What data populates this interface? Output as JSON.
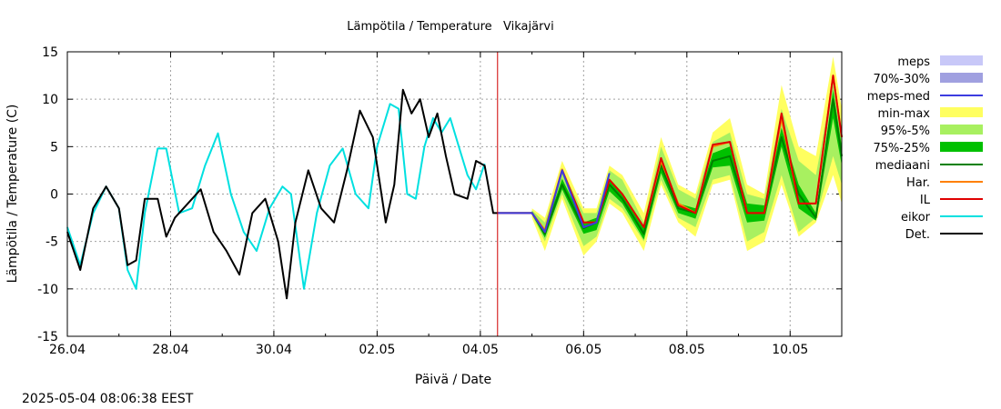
{
  "chart_data": {
    "type": "line",
    "title": "Lämpötila / Temperature   Vikajärvi",
    "xlabel": "Päivä / Date",
    "ylabel": "Lämpötila / Temperature (C)",
    "ylim": [
      -15,
      15
    ],
    "yticks": [
      "-15",
      "-10",
      "-5",
      "0",
      "5",
      "10",
      "15"
    ],
    "xlim_days": [
      "2025-04-26T00:00",
      "2025-05-11T00:00"
    ],
    "xticks": [
      "26.04",
      "28.04",
      "30.04",
      "02.05",
      "04.05",
      "06.05",
      "08.05",
      "10.05"
    ],
    "grid": true,
    "legend_position": "right",
    "now_marker": "2025-05-04T08:00",
    "timestamp": "2025-05-04 08:06:38 EEST",
    "legend": [
      {
        "label": "meps",
        "color": "#c8c8f8",
        "style": "box"
      },
      {
        "label": "70%-30%",
        "color": "#a0a0e0",
        "style": "box"
      },
      {
        "label": "meps-med",
        "color": "#3c3ce0",
        "style": "line"
      },
      {
        "label": "min-max",
        "color": "#ffff60",
        "style": "box"
      },
      {
        "label": "95%-5%",
        "color": "#a8f060",
        "style": "box"
      },
      {
        "label": "75%-25%",
        "color": "#00c000",
        "style": "box"
      },
      {
        "label": "mediaani",
        "color": "#008000",
        "style": "line"
      },
      {
        "label": "Har.",
        "color": "#ff8000",
        "style": "line"
      },
      {
        "label": "IL",
        "color": "#e00000",
        "style": "line"
      },
      {
        "label": "eikor",
        "color": "#00e0e0",
        "style": "line"
      },
      {
        "label": "Det.",
        "color": "#000000",
        "style": "line"
      }
    ],
    "series": [
      {
        "name": "eikor",
        "color": "#00e0e0",
        "x": [
          "2025-04-26T00:00",
          "2025-04-26T06:00",
          "2025-04-26T12:00",
          "2025-04-26T18:00",
          "2025-04-27T00:00",
          "2025-04-27T04:00",
          "2025-04-27T08:00",
          "2025-04-27T12:00",
          "2025-04-27T18:00",
          "2025-04-27T22:00",
          "2025-04-28T04:00",
          "2025-04-28T10:00",
          "2025-04-28T16:00",
          "2025-04-28T22:00",
          "2025-04-29T04:00",
          "2025-04-29T10:00",
          "2025-04-29T16:00",
          "2025-04-29T22:00",
          "2025-04-30T04:00",
          "2025-04-30T08:00",
          "2025-04-30T14:00",
          "2025-04-30T20:00",
          "2025-05-01T02:00",
          "2025-05-01T08:00",
          "2025-05-01T14:00",
          "2025-05-01T20:00",
          "2025-05-02T00:00",
          "2025-05-02T06:00",
          "2025-05-02T10:00",
          "2025-05-02T14:00",
          "2025-05-02T18:00",
          "2025-05-02T22:00",
          "2025-05-03T02:00",
          "2025-05-03T06:00",
          "2025-05-03T10:00",
          "2025-05-03T14:00",
          "2025-05-03T18:00",
          "2025-05-03T22:00",
          "2025-05-04T02:00"
        ],
        "y": [
          -3.5,
          -7.5,
          -2,
          0.8,
          -1.5,
          -8,
          -10,
          -2,
          4.8,
          4.8,
          -2,
          -1.5,
          3,
          6.4,
          0,
          -4,
          -6,
          -1.5,
          0.8,
          0,
          -10,
          -2,
          3,
          4.8,
          0,
          -1.5,
          5,
          9.5,
          9,
          0,
          -0.5,
          5,
          8,
          6.5,
          8,
          5,
          2,
          0.5,
          3.2
        ]
      },
      {
        "name": "Det.",
        "color": "#000000",
        "x": [
          "2025-04-26T00:00",
          "2025-04-26T06:00",
          "2025-04-26T12:00",
          "2025-04-26T18:00",
          "2025-04-27T00:00",
          "2025-04-27T04:00",
          "2025-04-27T08:00",
          "2025-04-27T12:00",
          "2025-04-27T18:00",
          "2025-04-27T22:00",
          "2025-04-28T02:00",
          "2025-04-28T08:00",
          "2025-04-28T14:00",
          "2025-04-28T20:00",
          "2025-04-29T02:00",
          "2025-04-29T08:00",
          "2025-04-29T14:00",
          "2025-04-29T20:00",
          "2025-04-30T02:00",
          "2025-04-30T06:00",
          "2025-04-30T10:00",
          "2025-04-30T16:00",
          "2025-04-30T22:00",
          "2025-05-01T04:00",
          "2025-05-01T10:00",
          "2025-05-01T16:00",
          "2025-05-01T22:00",
          "2025-05-02T04:00",
          "2025-05-02T08:00",
          "2025-05-02T12:00",
          "2025-05-02T16:00",
          "2025-05-02T20:00",
          "2025-05-03T00:00",
          "2025-05-03T04:00",
          "2025-05-03T08:00",
          "2025-05-03T12:00",
          "2025-05-03T18:00",
          "2025-05-03T22:00",
          "2025-05-04T02:00",
          "2025-05-04T06:00",
          "2025-05-04T08:00"
        ],
        "y": [
          -4,
          -8,
          -1.5,
          0.8,
          -1.5,
          -7.5,
          -7,
          -0.5,
          -0.5,
          -4.5,
          -2.5,
          -1,
          0.5,
          -4,
          -6,
          -8.5,
          -2,
          -0.5,
          -5,
          -11,
          -3,
          2.5,
          -1.5,
          -3,
          2.5,
          8.8,
          6,
          -3,
          1,
          11,
          8.5,
          10,
          6,
          8.5,
          4,
          0,
          -0.5,
          3.5,
          3,
          -2,
          -2
        ]
      },
      {
        "name": "mediaani",
        "color": "#008000",
        "x": [
          "2025-05-04T08:00",
          "2025-05-05T00:00",
          "2025-05-05T06:00",
          "2025-05-05T14:00",
          "2025-05-06T00:00",
          "2025-05-06T06:00",
          "2025-05-06T12:00",
          "2025-05-06T18:00",
          "2025-05-07T04:00",
          "2025-05-07T12:00",
          "2025-05-07T20:00",
          "2025-05-08T04:00",
          "2025-05-08T12:00",
          "2025-05-08T20:00",
          "2025-05-09T04:00",
          "2025-05-09T12:00",
          "2025-05-09T20:00",
          "2025-05-10T04:00",
          "2025-05-10T12:00",
          "2025-05-10T20:00",
          "2025-05-11T00:00"
        ],
        "y": [
          -2,
          -2,
          -4.2,
          1,
          -3.6,
          -3,
          1,
          -0.5,
          -4.2,
          3,
          -1.5,
          -2,
          3.5,
          4,
          -2,
          -2,
          6,
          0,
          -2.5,
          10,
          4
        ]
      },
      {
        "name": "Har.",
        "color": "#ff8000",
        "x": [
          "2025-05-04T08:00",
          "2025-05-05T00:00",
          "2025-05-05T06:00",
          "2025-05-05T14:00",
          "2025-05-06T00:00",
          "2025-05-06T06:00",
          "2025-05-06T12:00",
          "2025-05-06T18:00",
          "2025-05-07T04:00",
          "2025-05-07T12:00",
          "2025-05-07T20:00",
          "2025-05-08T04:00",
          "2025-05-08T12:00",
          "2025-05-08T20:00",
          "2025-05-09T04:00",
          "2025-05-09T12:00",
          "2025-05-09T20:00",
          "2025-05-10T04:00",
          "2025-05-10T12:00",
          "2025-05-10T20:00",
          "2025-05-11T00:00"
        ],
        "y": [
          -2,
          -2,
          -3.8,
          2.6,
          -3,
          -3,
          1.5,
          0,
          -3.5,
          3.5,
          -1,
          -2,
          5,
          5.5,
          -2,
          -2,
          8,
          -1,
          -1,
          12.5,
          6
        ]
      },
      {
        "name": "IL",
        "color": "#e00000",
        "x": [
          "2025-05-04T08:00",
          "2025-05-05T00:00",
          "2025-05-05T06:00",
          "2025-05-05T14:00",
          "2025-05-06T00:00",
          "2025-05-06T06:00",
          "2025-05-06T12:00",
          "2025-05-06T18:00",
          "2025-05-07T04:00",
          "2025-05-07T12:00",
          "2025-05-07T20:00",
          "2025-05-08T04:00",
          "2025-05-08T12:00",
          "2025-05-08T20:00",
          "2025-05-09T04:00",
          "2025-05-09T12:00",
          "2025-05-09T20:00",
          "2025-05-10T04:00",
          "2025-05-10T12:00",
          "2025-05-10T20:00",
          "2025-05-11T00:00"
        ],
        "y": [
          -2,
          -2,
          -4,
          2.5,
          -3,
          -3,
          1.5,
          0,
          -3.5,
          3.8,
          -1.2,
          -2,
          5.2,
          5.5,
          -2,
          -2,
          8.5,
          -1,
          -1,
          12.5,
          6
        ]
      },
      {
        "name": "meps-med",
        "color": "#3c3ce0",
        "x": [
          "2025-05-04T08:00",
          "2025-05-05T00:00",
          "2025-05-05T06:00",
          "2025-05-05T14:00",
          "2025-05-06T00:00",
          "2025-05-06T06:00",
          "2025-05-06T12:00"
        ],
        "y": [
          -2,
          -2,
          -4,
          2.5,
          -3.5,
          -3,
          2.2
        ]
      }
    ],
    "bands": [
      {
        "name": "min-max",
        "color": "#ffff60",
        "x": [
          "2025-05-05T00:00",
          "2025-05-05T06:00",
          "2025-05-05T14:00",
          "2025-05-06T00:00",
          "2025-05-06T06:00",
          "2025-05-06T12:00",
          "2025-05-06T18:00",
          "2025-05-07T04:00",
          "2025-05-07T12:00",
          "2025-05-07T20:00",
          "2025-05-08T04:00",
          "2025-05-08T12:00",
          "2025-05-08T20:00",
          "2025-05-09T04:00",
          "2025-05-09T12:00",
          "2025-05-09T20:00",
          "2025-05-10T04:00",
          "2025-05-10T12:00",
          "2025-05-10T20:00",
          "2025-05-11T00:00"
        ],
        "lo": [
          -2.5,
          -6,
          -0.5,
          -6.5,
          -5,
          -1,
          -2,
          -6,
          1,
          -3,
          -4.5,
          1,
          1.5,
          -6,
          -5,
          1,
          -4.5,
          -3,
          2,
          -1
        ],
        "hi": [
          -1.5,
          -2.5,
          3.5,
          -1.5,
          -1.5,
          3,
          2,
          -2,
          6,
          1,
          0,
          6.5,
          8,
          1,
          0,
          11.5,
          5,
          4,
          14.5,
          9
        ]
      },
      {
        "name": "95%-5%",
        "color": "#a8f060",
        "x": [
          "2025-05-05T00:00",
          "2025-05-05T06:00",
          "2025-05-05T14:00",
          "2025-05-06T00:00",
          "2025-05-06T06:00",
          "2025-05-06T12:00",
          "2025-05-06T18:00",
          "2025-05-07T04:00",
          "2025-05-07T12:00",
          "2025-05-07T20:00",
          "2025-05-08T04:00",
          "2025-05-08T12:00",
          "2025-05-08T20:00",
          "2025-05-09T04:00",
          "2025-05-09T12:00",
          "2025-05-09T20:00",
          "2025-05-10T04:00",
          "2025-05-10T12:00",
          "2025-05-10T20:00",
          "2025-05-11T00:00"
        ],
        "lo": [
          -2.2,
          -5,
          0,
          -5.5,
          -4.5,
          -0.5,
          -1.5,
          -5,
          1.5,
          -2.5,
          -3.5,
          1.5,
          2,
          -5,
          -4,
          2,
          -4,
          -2.5,
          4,
          1
        ],
        "hi": [
          -1.7,
          -3,
          2.5,
          -2,
          -2,
          2.5,
          1.5,
          -3,
          5,
          0.5,
          -0.5,
          5.5,
          6.5,
          0,
          -0.5,
          9,
          3.5,
          2,
          12,
          7
        ]
      },
      {
        "name": "75%-25%",
        "color": "#00c000",
        "x": [
          "2025-05-05T00:00",
          "2025-05-05T06:00",
          "2025-05-05T14:00",
          "2025-05-06T00:00",
          "2025-05-06T06:00",
          "2025-05-06T12:00",
          "2025-05-06T18:00",
          "2025-05-07T04:00",
          "2025-05-07T12:00",
          "2025-05-07T20:00",
          "2025-05-08T04:00",
          "2025-05-08T12:00",
          "2025-05-08T20:00",
          "2025-05-09T04:00",
          "2025-05-09T12:00",
          "2025-05-09T20:00",
          "2025-05-10T04:00",
          "2025-05-10T12:00",
          "2025-05-10T20:00",
          "2025-05-11T00:00"
        ],
        "lo": [
          -2.1,
          -4.6,
          0.5,
          -4.2,
          -3.8,
          0.3,
          -1,
          -4.8,
          2.2,
          -2,
          -2.6,
          2.8,
          3,
          -3,
          -2.8,
          5,
          -1.5,
          -2.8,
          8,
          3
        ],
        "hi": [
          -1.8,
          -3.8,
          1.6,
          -3,
          -2.5,
          1.6,
          0,
          -3.5,
          3.8,
          -1,
          -1.5,
          4.3,
          5,
          -1,
          -1.2,
          7,
          1,
          -2,
          11,
          5
        ]
      }
    ]
  }
}
